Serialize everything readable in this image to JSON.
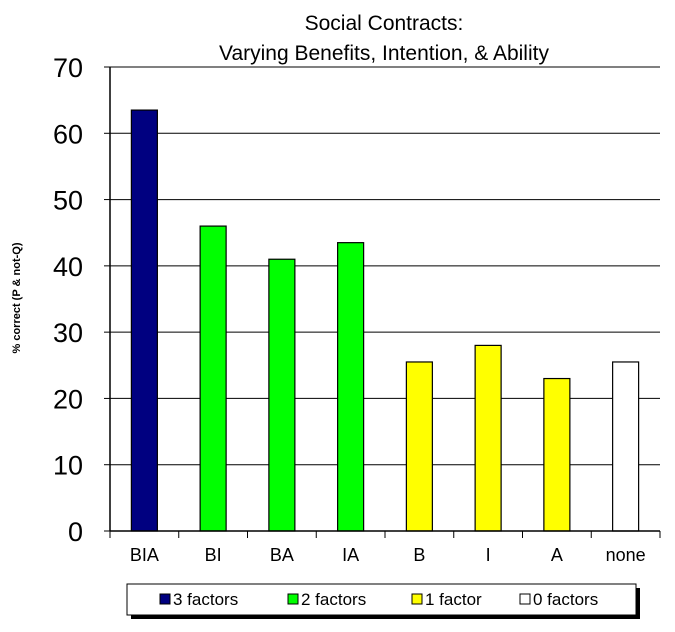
{
  "chart_data": {
    "type": "bar",
    "title": [
      "Social Contracts:",
      "Varying Benefits, Intention, & Ability"
    ],
    "xlabel": "",
    "ylabel": "% correct (P & not-Q)",
    "ylim": [
      0,
      70
    ],
    "yticks": [
      "0",
      "10",
      "20",
      "30",
      "40",
      "50",
      "60",
      "70"
    ],
    "grid": "horizontal",
    "legend_position": "bottom",
    "categories": [
      "BIA",
      "BI",
      "BA",
      "IA",
      "B",
      "I",
      "A",
      "none"
    ],
    "values": [
      63.5,
      46,
      41,
      43.5,
      25.5,
      28,
      23,
      25.5
    ],
    "bar_groups": [
      0,
      1,
      1,
      1,
      2,
      2,
      2,
      3
    ],
    "legend": [
      {
        "label": "3 factors",
        "color": "#000080"
      },
      {
        "label": "2 factors",
        "color": "#00ff00"
      },
      {
        "label": "1 factor",
        "color": "#ffff00"
      },
      {
        "label": "0 factors",
        "color": "#ffffff"
      }
    ]
  }
}
